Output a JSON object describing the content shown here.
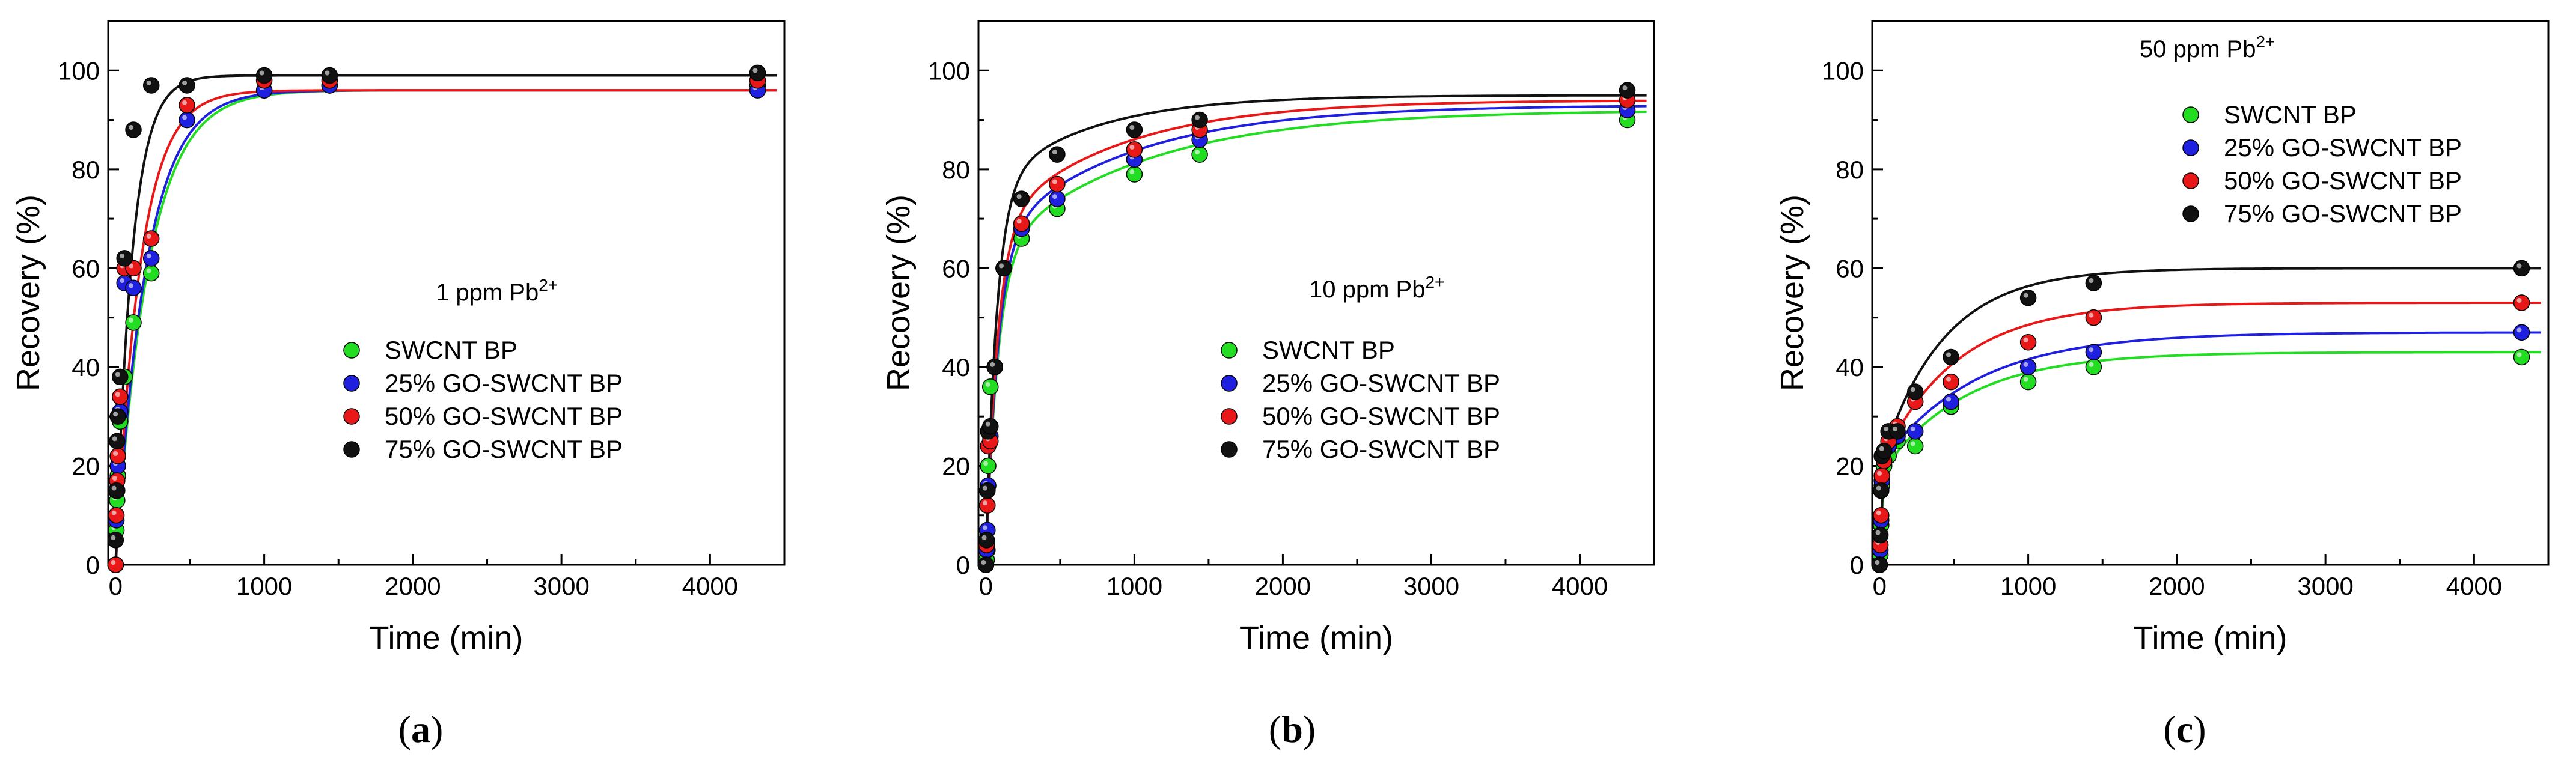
{
  "chart_data": [
    {
      "panel": "(a)",
      "type": "scatter",
      "annotation": {
        "base": "1 ppm Pb",
        "sup": "2+"
      },
      "xlabel": "Time (min)",
      "ylabel": "Recovery (%)",
      "xlim": [
        -50,
        4500
      ],
      "ylim": [
        0,
        110
      ],
      "xticks": [
        0,
        1000,
        2000,
        3000,
        4000
      ],
      "yticks": [
        0,
        20,
        40,
        60,
        80,
        100
      ],
      "legend_position": "middle-right",
      "series": [
        {
          "name": "SWCNT BP",
          "color": "#22dd22",
          "x": [
            0,
            5,
            10,
            15,
            30,
            60,
            120,
            240,
            480,
            1000,
            1440,
            4320
          ],
          "y": [
            0,
            7,
            13,
            18,
            29,
            38,
            49,
            59,
            90,
            96,
            97,
            97
          ],
          "fit": {
            "plateau": 96,
            "k": 0.0045
          }
        },
        {
          "name": "25% GO-SWCNT BP",
          "color": "#1f1fe0",
          "x": [
            0,
            5,
            10,
            15,
            30,
            60,
            120,
            240,
            480,
            1000,
            1440,
            4320
          ],
          "y": [
            0,
            9,
            15,
            20,
            31,
            57,
            56,
            62,
            90,
            96,
            97,
            96
          ],
          "fit": {
            "plateau": 96,
            "k": 0.0048
          }
        },
        {
          "name": "50% GO-SWCNT BP",
          "color": "#e81818",
          "x": [
            0,
            5,
            10,
            15,
            30,
            60,
            120,
            240,
            480,
            1000,
            1440,
            4320
          ],
          "y": [
            0,
            10,
            17,
            22,
            34,
            60,
            60,
            66,
            93,
            98,
            98,
            98
          ],
          "fit": {
            "plateau": 96,
            "k": 0.006
          }
        },
        {
          "name": "75% GO-SWCNT BP",
          "color": "#111111",
          "x": [
            0,
            5,
            10,
            15,
            30,
            60,
            120,
            240,
            480,
            1000,
            1440,
            4320
          ],
          "y": [
            5,
            15,
            25,
            30,
            38,
            62,
            88,
            97,
            97,
            99,
            99,
            99.5
          ],
          "fit": {
            "plateau": 99,
            "k": 0.009
          }
        }
      ]
    },
    {
      "panel": "(b)",
      "type": "scatter",
      "annotation": {
        "base": "10 ppm Pb",
        "sup": "2+"
      },
      "xlabel": "Time (min)",
      "ylabel": "Recovery (%)",
      "xlim": [
        -50,
        4500
      ],
      "ylim": [
        0,
        110
      ],
      "xticks": [
        0,
        1000,
        2000,
        3000,
        4000
      ],
      "yticks": [
        0,
        20,
        40,
        60,
        80,
        100
      ],
      "legend_position": "middle-right",
      "series": [
        {
          "name": "SWCNT BP",
          "color": "#22dd22",
          "x": [
            0,
            5,
            10,
            15,
            30,
            60,
            120,
            240,
            480,
            1000,
            1440,
            4320
          ],
          "y": [
            0,
            1,
            3,
            20,
            36,
            40,
            60,
            66,
            72,
            79,
            83,
            90
          ],
          "fit": {
            "plateau": 92,
            "k1": 0.0125,
            "split": 0.68,
            "k2": 0.001
          }
        },
        {
          "name": "25% GO-SWCNT BP",
          "color": "#1f1fe0",
          "x": [
            0,
            5,
            10,
            15,
            30,
            60,
            120,
            240,
            480,
            1000,
            1440,
            4320
          ],
          "y": [
            0,
            3,
            7,
            16,
            26,
            40,
            60,
            68,
            74,
            82,
            86,
            92
          ],
          "fit": {
            "plateau": 93,
            "k1": 0.0125,
            "split": 0.7,
            "k2": 0.0011
          }
        },
        {
          "name": "50% GO-SWCNT BP",
          "color": "#e81818",
          "x": [
            0,
            5,
            10,
            15,
            30,
            60,
            120,
            240,
            480,
            1000,
            1440,
            4320
          ],
          "y": [
            0,
            4,
            12,
            24,
            25,
            40,
            60,
            69,
            77,
            84,
            88,
            94
          ],
          "fit": {
            "plateau": 94,
            "k1": 0.013,
            "split": 0.72,
            "k2": 0.0012
          }
        },
        {
          "name": "75% GO-SWCNT BP",
          "color": "#111111",
          "x": [
            0,
            5,
            10,
            15,
            30,
            60,
            120,
            240,
            480,
            1000,
            1440,
            4320
          ],
          "y": [
            0,
            5,
            15,
            27,
            28,
            40,
            60,
            74,
            83,
            88,
            90,
            96
          ],
          "fit": {
            "plateau": 95,
            "k1": 0.014,
            "split": 0.8,
            "k2": 0.0015
          }
        }
      ]
    },
    {
      "panel": "(c)",
      "type": "scatter",
      "annotation": {
        "base": "50 ppm Pb",
        "sup": "2+"
      },
      "xlabel": "Time (min)",
      "ylabel": "Recovery (%)",
      "xlim": [
        -50,
        4500
      ],
      "ylim": [
        0,
        110
      ],
      "xticks": [
        0,
        1000,
        2000,
        3000,
        4000
      ],
      "yticks": [
        0,
        20,
        40,
        60,
        80,
        100
      ],
      "legend_position": "top-right",
      "series": [
        {
          "name": "SWCNT BP",
          "color": "#22dd22",
          "x": [
            0,
            5,
            10,
            15,
            30,
            60,
            120,
            240,
            480,
            1000,
            1440,
            4320
          ],
          "y": [
            0,
            2,
            8,
            16,
            20,
            22,
            25,
            24,
            32,
            37,
            40,
            42
          ],
          "fit": {
            "base": 18,
            "rise": 25,
            "k": 0.0018
          }
        },
        {
          "name": "25% GO-SWCNT BP",
          "color": "#1f1fe0",
          "x": [
            0,
            5,
            10,
            15,
            30,
            60,
            120,
            240,
            480,
            1000,
            1440,
            4320
          ],
          "y": [
            0,
            3,
            9,
            17,
            21,
            24,
            26,
            27,
            33,
            40,
            43,
            47
          ],
          "fit": {
            "base": 20,
            "rise": 27,
            "k": 0.0016
          }
        },
        {
          "name": "50% GO-SWCNT BP",
          "color": "#e81818",
          "x": [
            0,
            5,
            10,
            15,
            30,
            60,
            120,
            240,
            480,
            1000,
            1440,
            4320
          ],
          "y": [
            0,
            4,
            10,
            18,
            21,
            25,
            28,
            33,
            37,
            45,
            50,
            53
          ],
          "fit": {
            "base": 20,
            "rise": 33,
            "k": 0.002
          }
        },
        {
          "name": "75% GO-SWCNT BP",
          "color": "#111111",
          "x": [
            0,
            5,
            10,
            15,
            30,
            60,
            120,
            240,
            480,
            1000,
            1440,
            4320
          ],
          "y": [
            0,
            6,
            15,
            22,
            23,
            27,
            27,
            35,
            42,
            54,
            57,
            60
          ],
          "fit": {
            "base": 20,
            "rise": 40,
            "k": 0.0024
          }
        }
      ]
    }
  ]
}
